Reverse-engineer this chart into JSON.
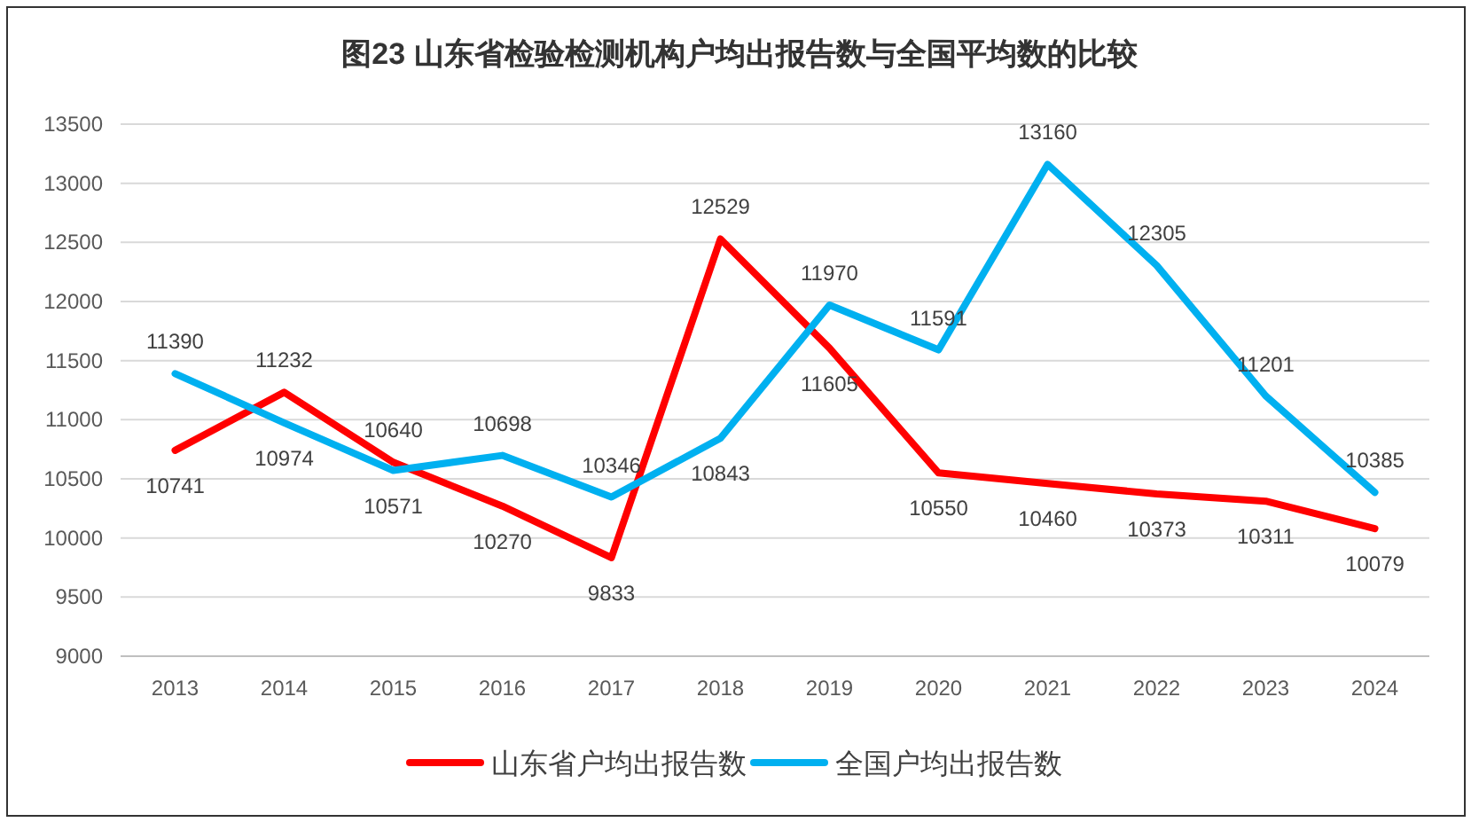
{
  "chart_data": {
    "type": "line",
    "title": "图23   山东省检验检测机构户均出报告数与全国平均数的比较",
    "categories": [
      "2013",
      "2014",
      "2015",
      "2016",
      "2017",
      "2018",
      "2019",
      "2020",
      "2021",
      "2022",
      "2023",
      "2024"
    ],
    "series": [
      {
        "name": "山东省户均出报告数",
        "color": "#ff0000",
        "values": [
          10741,
          11232,
          10640,
          10270,
          9833,
          12529,
          11605,
          10550,
          10460,
          10373,
          10311,
          10079
        ]
      },
      {
        "name": "全国户均出报告数",
        "color": "#00b0f0",
        "values": [
          11390,
          10974,
          10571,
          10698,
          10346,
          10843,
          11970,
          11591,
          13160,
          12305,
          11201,
          10385
        ]
      }
    ],
    "ylim": [
      9000,
      13500
    ],
    "yticks": [
      9000,
      9500,
      10000,
      10500,
      11000,
      11500,
      12000,
      12500,
      13000,
      13500
    ],
    "grid": "y",
    "legend": "bottom",
    "data_labels": true
  }
}
